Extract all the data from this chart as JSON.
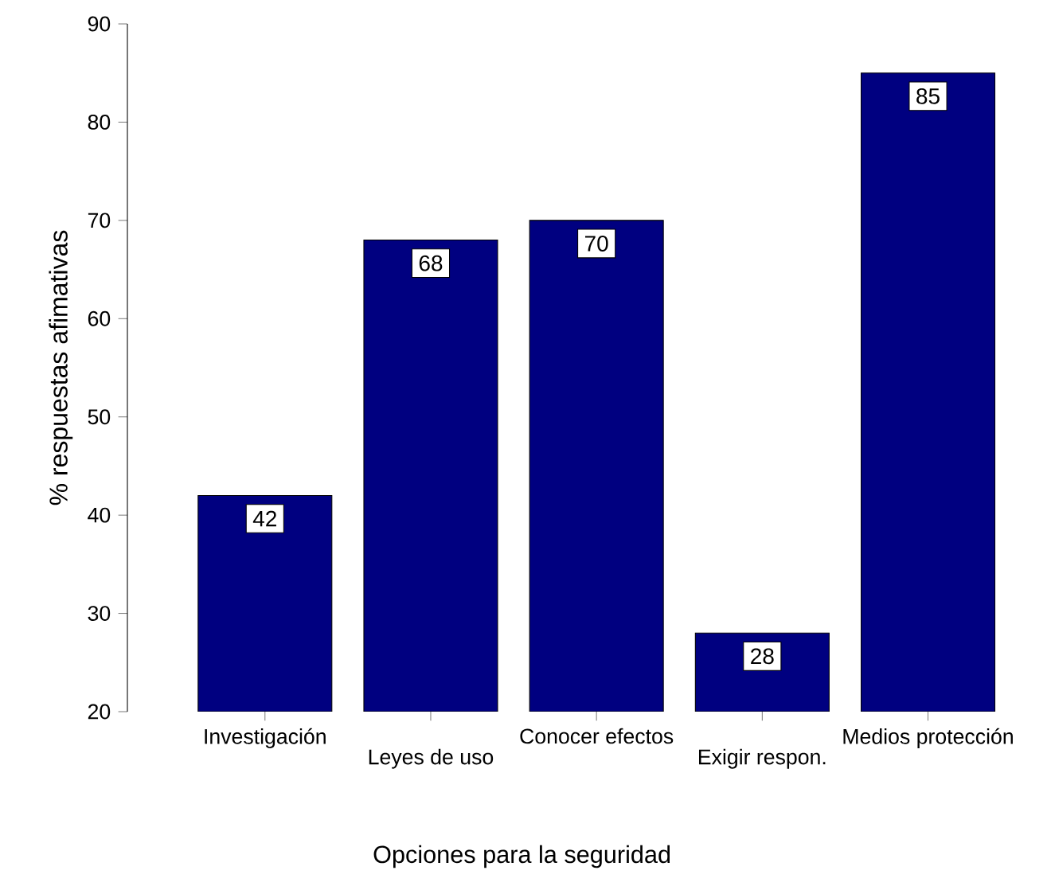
{
  "chart_data": {
    "type": "bar",
    "xlabel": "Opciones para la seguridad",
    "ylabel": "% respuestas afimativas",
    "categories": [
      "Investigación",
      "Leyes de uso",
      "Conocer efectos",
      "Exigir respon.",
      "Medios protección"
    ],
    "values": [
      42,
      68,
      70,
      28,
      85
    ],
    "color": "#000080",
    "ylim": [
      20,
      90
    ],
    "yticks": [
      20,
      30,
      40,
      50,
      60,
      70,
      80,
      90
    ],
    "data_labels": true,
    "grid": false
  }
}
